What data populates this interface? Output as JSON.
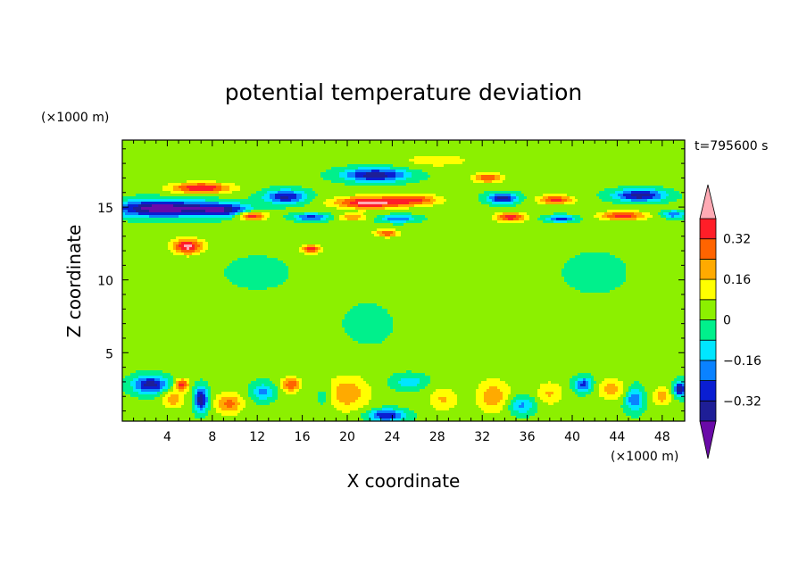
{
  "chart_data": {
    "type": "heatmap",
    "title": "potential temperature deviation",
    "xlabel": "X coordinate",
    "ylabel": "Z coordinate",
    "x_unit": "(×1000 m)",
    "y_unit": "(×1000 m)",
    "time_label": "t=795600 s",
    "xlim": [
      0,
      50
    ],
    "ylim": [
      0.3,
      19.6
    ],
    "x_ticks": [
      4,
      8,
      12,
      16,
      20,
      24,
      28,
      32,
      36,
      40,
      44,
      48
    ],
    "x_tick_labels": [
      "4",
      "8",
      "12",
      "16",
      "20",
      "24",
      "28",
      "32",
      "36",
      "40",
      "44",
      "48"
    ],
    "y_ticks": [
      5,
      10,
      15
    ],
    "y_tick_labels": [
      "5",
      "10",
      "15"
    ],
    "colorbar": {
      "levels": [
        -0.4,
        -0.32,
        -0.24,
        -0.16,
        -0.08,
        0,
        0.08,
        0.16,
        0.24,
        0.32,
        0.4
      ],
      "tick_values": [
        -0.32,
        -0.16,
        0,
        0.16,
        0.32
      ],
      "tick_labels": [
        "−0.32",
        "−0.16",
        "0",
        "0.16",
        "0.32"
      ],
      "colors": [
        "#6a0aa8",
        "#1e1e96",
        "#0a1ed2",
        "#0a82ff",
        "#00e6ff",
        "#00f08c",
        "#8cf000",
        "#ffff00",
        "#ffaa00",
        "#ff6400",
        "#ff1e28",
        "#ffaab4"
      ],
      "extend": "both"
    },
    "base_value": 0.02,
    "features": [
      {
        "x": 3.5,
        "z": 14.9,
        "sx": 4.2,
        "sz": 0.55,
        "value": -0.5
      },
      {
        "x": 9,
        "z": 14.8,
        "sx": 2.5,
        "sz": 0.45,
        "value": -0.35
      },
      {
        "x": 14.5,
        "z": 15.7,
        "sx": 1.8,
        "sz": 0.45,
        "value": -0.36
      },
      {
        "x": 7,
        "z": 16.3,
        "sx": 2.6,
        "sz": 0.35,
        "value": 0.4
      },
      {
        "x": 11.5,
        "z": 14.4,
        "sx": 1.3,
        "sz": 0.3,
        "value": 0.38
      },
      {
        "x": 16.8,
        "z": 14.3,
        "sx": 1.5,
        "sz": 0.25,
        "value": -0.3
      },
      {
        "x": 22.5,
        "z": 17.2,
        "sx": 2.8,
        "sz": 0.45,
        "value": -0.4
      },
      {
        "x": 22,
        "z": 15.3,
        "sx": 3,
        "sz": 0.4,
        "value": 0.43
      },
      {
        "x": 26,
        "z": 15.5,
        "sx": 2.2,
        "sz": 0.35,
        "value": 0.3
      },
      {
        "x": 24.5,
        "z": 14.2,
        "sx": 1.6,
        "sz": 0.25,
        "value": -0.25
      },
      {
        "x": 20.5,
        "z": 14.3,
        "sx": 1.2,
        "sz": 0.25,
        "value": 0.22
      },
      {
        "x": 23.5,
        "z": 13.2,
        "sx": 1,
        "sz": 0.25,
        "value": 0.3
      },
      {
        "x": 32.5,
        "z": 17,
        "sx": 1.3,
        "sz": 0.3,
        "value": 0.3
      },
      {
        "x": 33.8,
        "z": 15.6,
        "sx": 1.3,
        "sz": 0.35,
        "value": -0.38
      },
      {
        "x": 34.5,
        "z": 14.3,
        "sx": 1.3,
        "sz": 0.3,
        "value": 0.37
      },
      {
        "x": 38.5,
        "z": 15.5,
        "sx": 1.5,
        "sz": 0.3,
        "value": 0.34
      },
      {
        "x": 39,
        "z": 14.2,
        "sx": 1.3,
        "sz": 0.22,
        "value": -0.3
      },
      {
        "x": 46,
        "z": 15.8,
        "sx": 2.2,
        "sz": 0.4,
        "value": -0.4
      },
      {
        "x": 44.5,
        "z": 14.4,
        "sx": 2,
        "sz": 0.3,
        "value": 0.34
      },
      {
        "x": 49,
        "z": 14.5,
        "sx": 1,
        "sz": 0.25,
        "value": -0.25
      },
      {
        "x": 5.8,
        "z": 12.3,
        "sx": 1.3,
        "sz": 0.5,
        "value": 0.42
      },
      {
        "x": 16.8,
        "z": 12.1,
        "sx": 0.8,
        "sz": 0.3,
        "value": 0.35
      },
      {
        "x": 28,
        "z": 18.2,
        "sx": 3.5,
        "sz": 0.5,
        "value": 0.1
      },
      {
        "x": 2.5,
        "z": 2.8,
        "sx": 1.5,
        "sz": 0.6,
        "value": -0.38
      },
      {
        "x": 7,
        "z": 1.8,
        "sx": 0.6,
        "sz": 0.8,
        "value": -0.4
      },
      {
        "x": 5.3,
        "z": 2.8,
        "sx": 0.6,
        "sz": 0.4,
        "value": 0.34
      },
      {
        "x": 4.5,
        "z": 1.8,
        "sx": 1,
        "sz": 0.6,
        "value": 0.2
      },
      {
        "x": 9.5,
        "z": 1.5,
        "sx": 1.2,
        "sz": 0.7,
        "value": 0.25
      },
      {
        "x": 12.5,
        "z": 2.3,
        "sx": 1,
        "sz": 0.6,
        "value": -0.2
      },
      {
        "x": 15,
        "z": 2.8,
        "sx": 0.8,
        "sz": 0.5,
        "value": 0.3
      },
      {
        "x": 20,
        "z": 2.2,
        "sx": 2,
        "sz": 1.2,
        "value": 0.2
      },
      {
        "x": 18,
        "z": 2,
        "sx": 0.8,
        "sz": 0.8,
        "value": -0.1
      },
      {
        "x": 23.5,
        "z": 0.7,
        "sx": 1.6,
        "sz": 0.4,
        "value": -0.35
      },
      {
        "x": 25.5,
        "z": 3,
        "sx": 1.5,
        "sz": 0.5,
        "value": -0.15
      },
      {
        "x": 28.5,
        "z": 1.8,
        "sx": 1.3,
        "sz": 0.8,
        "value": 0.15
      },
      {
        "x": 33,
        "z": 2,
        "sx": 1.5,
        "sz": 1.1,
        "value": 0.2
      },
      {
        "x": 35.5,
        "z": 1.4,
        "sx": 1.2,
        "sz": 0.6,
        "value": -0.2
      },
      {
        "x": 38,
        "z": 2.2,
        "sx": 1.2,
        "sz": 0.8,
        "value": 0.15
      },
      {
        "x": 41,
        "z": 2.8,
        "sx": 0.8,
        "sz": 0.5,
        "value": -0.3
      },
      {
        "x": 43.5,
        "z": 2.5,
        "sx": 1.3,
        "sz": 0.7,
        "value": 0.18
      },
      {
        "x": 45.5,
        "z": 1.8,
        "sx": 0.8,
        "sz": 0.8,
        "value": -0.25
      },
      {
        "x": 48,
        "z": 2,
        "sx": 0.8,
        "sz": 0.6,
        "value": 0.2
      },
      {
        "x": 49.6,
        "z": 2.5,
        "sx": 0.6,
        "sz": 0.5,
        "value": -0.4
      },
      {
        "x": 12,
        "z": 10.5,
        "sx": 3,
        "sz": 1.2,
        "value": -0.05
      },
      {
        "x": 30,
        "z": 8,
        "sx": 4,
        "sz": 2,
        "value": 0.06
      },
      {
        "x": 42,
        "z": 10.5,
        "sx": 3,
        "sz": 1.5,
        "value": -0.05
      },
      {
        "x": 22,
        "z": 7,
        "sx": 2.5,
        "sz": 1.5,
        "value": -0.05
      },
      {
        "x": 5,
        "z": 6,
        "sx": 2.5,
        "sz": 1.5,
        "value": 0.05
      }
    ]
  }
}
